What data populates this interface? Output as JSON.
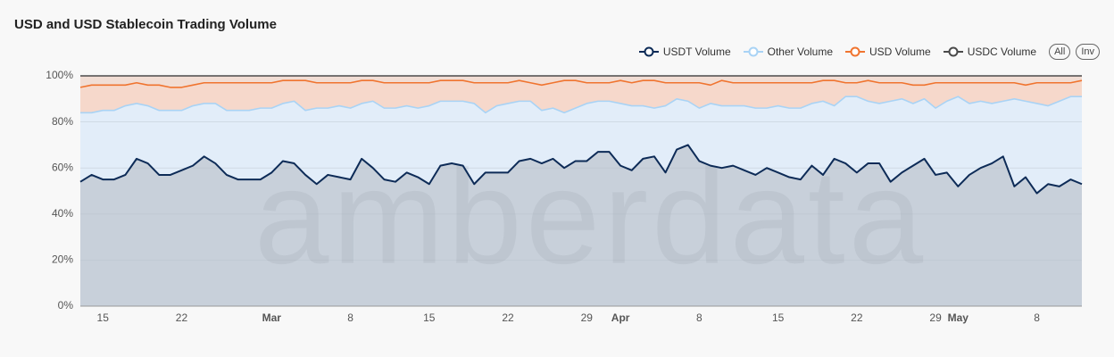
{
  "chart_data": {
    "type": "stacked_area",
    "title": "USD and USD Stablecoin Trading Volume",
    "watermark": "amberdata",
    "controls": [
      "All",
      "Inv"
    ],
    "categories": [
      null,
      null,
      "15",
      null,
      null,
      null,
      null,
      null,
      null,
      "22",
      null,
      null,
      null,
      null,
      null,
      null,
      null,
      "Mar",
      null,
      null,
      null,
      null,
      null,
      null,
      "8",
      null,
      null,
      null,
      null,
      null,
      null,
      "15",
      null,
      null,
      null,
      null,
      null,
      null,
      "22",
      null,
      null,
      null,
      null,
      null,
      null,
      "29",
      null,
      null,
      "Apr",
      null,
      null,
      null,
      null,
      null,
      null,
      "8",
      null,
      null,
      null,
      null,
      null,
      null,
      "15",
      null,
      null,
      null,
      null,
      null,
      null,
      "22",
      null,
      null,
      null,
      null,
      null,
      null,
      "29",
      null,
      "May",
      null,
      null,
      null,
      null,
      null,
      null,
      "8",
      null,
      null,
      null,
      null
    ],
    "series": [
      {
        "name": "USDT Volume",
        "color": "#0d2b57",
        "fill": "#c8d0da",
        "values": [
          54,
          57,
          55,
          55,
          57,
          64,
          62,
          57,
          57,
          59,
          61,
          65,
          62,
          57,
          55,
          55,
          55,
          58,
          63,
          62,
          57,
          53,
          57,
          56,
          55,
          64,
          60,
          55,
          54,
          58,
          56,
          53,
          61,
          62,
          61,
          53,
          58,
          58,
          58,
          63,
          64,
          62,
          64,
          60,
          63,
          63,
          67,
          67,
          61,
          59,
          64,
          65,
          58,
          68,
          70,
          63,
          61,
          60,
          61,
          59,
          57,
          60,
          58,
          56,
          55,
          61,
          57,
          64,
          62,
          58,
          62,
          62,
          54,
          58,
          61,
          64,
          57,
          58,
          52,
          57,
          60,
          62,
          65,
          52,
          56,
          49,
          53,
          52,
          55,
          53
        ]
      },
      {
        "name": "Other Volume",
        "color": "#a9d3f5",
        "fill": "#e2edf9",
        "values": [
          30,
          27,
          30,
          30,
          30,
          24,
          25,
          28,
          28,
          26,
          26,
          23,
          26,
          28,
          30,
          30,
          31,
          28,
          25,
          27,
          28,
          33,
          29,
          31,
          31,
          24,
          29,
          31,
          32,
          29,
          30,
          34,
          28,
          27,
          28,
          35,
          26,
          29,
          30,
          26,
          25,
          23,
          22,
          24,
          23,
          25,
          22,
          22,
          27,
          28,
          23,
          21,
          29,
          22,
          19,
          23,
          27,
          27,
          26,
          28,
          29,
          26,
          29,
          30,
          31,
          27,
          32,
          23,
          29,
          33,
          27,
          26,
          35,
          32,
          27,
          26,
          29,
          31,
          39,
          31,
          29,
          26,
          24,
          38,
          33,
          39,
          34,
          37,
          36,
          38
        ]
      },
      {
        "name": "USD Volume",
        "color": "#f0742f",
        "fill": "#f6d8cb",
        "values": [
          11,
          12,
          11,
          11,
          9,
          9,
          9,
          11,
          10,
          10,
          9,
          9,
          9,
          12,
          12,
          12,
          11,
          11,
          10,
          9,
          13,
          11,
          11,
          10,
          11,
          10,
          9,
          11,
          11,
          10,
          11,
          10,
          9,
          9,
          9,
          9,
          13,
          10,
          9,
          9,
          8,
          11,
          11,
          14,
          12,
          9,
          8,
          8,
          10,
          10,
          11,
          12,
          10,
          7,
          8,
          11,
          8,
          11,
          10,
          10,
          11,
          11,
          10,
          11,
          11,
          9,
          9,
          11,
          6,
          6,
          9,
          9,
          8,
          7,
          8,
          6,
          11,
          8,
          6,
          9,
          8,
          9,
          8,
          7,
          7,
          9,
          10,
          8,
          6,
          7
        ]
      },
      {
        "name": "USDC Volume",
        "color": "#4a4a4a",
        "fill": "#f1ddd4",
        "values": [
          5,
          4,
          4,
          4,
          4,
          3,
          4,
          4,
          5,
          5,
          4,
          3,
          3,
          3,
          3,
          3,
          3,
          3,
          2,
          2,
          2,
          3,
          3,
          3,
          3,
          2,
          2,
          3,
          3,
          3,
          3,
          3,
          2,
          2,
          2,
          3,
          3,
          3,
          3,
          2,
          3,
          4,
          3,
          2,
          2,
          3,
          3,
          3,
          2,
          3,
          2,
          2,
          3,
          3,
          3,
          3,
          4,
          2,
          3,
          3,
          3,
          3,
          3,
          3,
          3,
          3,
          2,
          2,
          3,
          3,
          2,
          3,
          3,
          3,
          4,
          4,
          3,
          3,
          3,
          3,
          3,
          3,
          3,
          3,
          4,
          3,
          3,
          3,
          3,
          2
        ]
      }
    ],
    "ylim": [
      0,
      100
    ],
    "yticks": [
      {
        "value": 0,
        "label": "0%"
      },
      {
        "value": 20,
        "label": "20%"
      },
      {
        "value": 40,
        "label": "40%"
      },
      {
        "value": 60,
        "label": "60%"
      },
      {
        "value": 80,
        "label": "80%"
      },
      {
        "value": 100,
        "label": "100%"
      }
    ],
    "grid": true,
    "legend": "top-right"
  }
}
